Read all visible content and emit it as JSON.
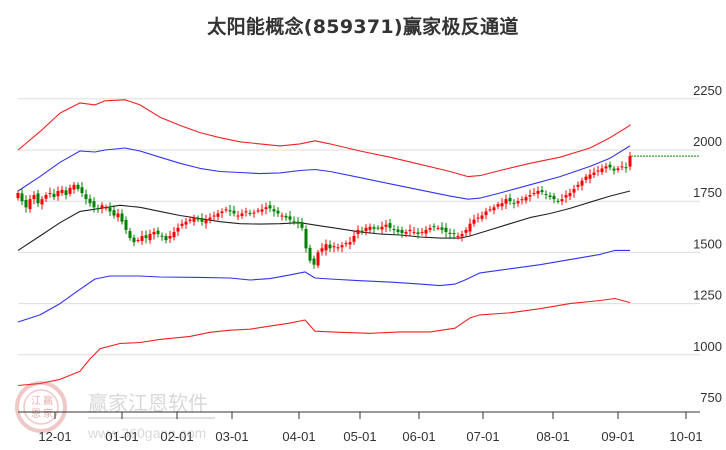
{
  "title": "太阳能概念(859371)赢家极反通道",
  "watermark": {
    "brand": "赢家江恩软件",
    "url": "www.360gann.com",
    "seal_chars": [
      "江",
      "赢",
      "恩",
      "家"
    ]
  },
  "colors": {
    "outer_band": "#ee2222",
    "inner_band": "#3333ee",
    "mid_line": "#222222",
    "up_candle": "#ff0000",
    "down_candle": "#008000",
    "last_price_line": "#008000",
    "grid": "#dddddd",
    "axis": "#333333"
  },
  "chart_data": {
    "type": "candlestick",
    "title": "太阳能概念(859371)赢家极反通道",
    "xlabel": "",
    "ylabel": "",
    "ylim": [
      750,
      2300
    ],
    "y_ticks": [
      750,
      1000,
      1250,
      1500,
      1750,
      2000,
      2250
    ],
    "x_ticks": [
      "12-01",
      "01-01",
      "02-01",
      "03-01",
      "04-01",
      "05-01",
      "06-01",
      "07-01",
      "08-01",
      "09-01",
      "10-01"
    ],
    "grid": true,
    "legend": null,
    "last_price": 1970,
    "series": [
      {
        "name": "upper_outer_band",
        "color": "#ee2222",
        "points": [
          [
            18,
            2000
          ],
          [
            40,
            2090
          ],
          [
            60,
            2180
          ],
          [
            80,
            2230
          ],
          [
            95,
            2220
          ],
          [
            105,
            2240
          ],
          [
            125,
            2245
          ],
          [
            140,
            2220
          ],
          [
            160,
            2160
          ],
          [
            180,
            2120
          ],
          [
            200,
            2085
          ],
          [
            220,
            2060
          ],
          [
            240,
            2040
          ],
          [
            260,
            2030
          ],
          [
            280,
            2020
          ],
          [
            300,
            2030
          ],
          [
            315,
            2045
          ],
          [
            330,
            2030
          ],
          [
            360,
            1995
          ],
          [
            390,
            1965
          ],
          [
            420,
            1930
          ],
          [
            450,
            1895
          ],
          [
            468,
            1870
          ],
          [
            480,
            1875
          ],
          [
            500,
            1900
          ],
          [
            530,
            1935
          ],
          [
            560,
            1965
          ],
          [
            590,
            2010
          ],
          [
            610,
            2060
          ],
          [
            630,
            2120
          ],
          [
            630,
            2125
          ]
        ]
      },
      {
        "name": "upper_inner_band",
        "color": "#3333ee",
        "points": [
          [
            18,
            1800
          ],
          [
            40,
            1870
          ],
          [
            60,
            1940
          ],
          [
            80,
            1995
          ],
          [
            95,
            1990
          ],
          [
            105,
            2000
          ],
          [
            125,
            2010
          ],
          [
            140,
            1995
          ],
          [
            160,
            1965
          ],
          [
            180,
            1935
          ],
          [
            200,
            1910
          ],
          [
            220,
            1895
          ],
          [
            240,
            1890
          ],
          [
            260,
            1885
          ],
          [
            280,
            1888
          ],
          [
            300,
            1900
          ],
          [
            315,
            1905
          ],
          [
            330,
            1895
          ],
          [
            360,
            1865
          ],
          [
            390,
            1835
          ],
          [
            420,
            1805
          ],
          [
            450,
            1775
          ],
          [
            468,
            1760
          ],
          [
            480,
            1765
          ],
          [
            500,
            1790
          ],
          [
            530,
            1830
          ],
          [
            560,
            1870
          ],
          [
            590,
            1920
          ],
          [
            610,
            1960
          ],
          [
            630,
            2020
          ]
        ]
      },
      {
        "name": "middle_line",
        "color": "#222222",
        "points": [
          [
            18,
            1510
          ],
          [
            40,
            1580
          ],
          [
            60,
            1645
          ],
          [
            80,
            1700
          ],
          [
            100,
            1715
          ],
          [
            120,
            1730
          ],
          [
            140,
            1720
          ],
          [
            160,
            1700
          ],
          [
            180,
            1680
          ],
          [
            200,
            1665
          ],
          [
            220,
            1650
          ],
          [
            240,
            1640
          ],
          [
            260,
            1638
          ],
          [
            280,
            1640
          ],
          [
            300,
            1645
          ],
          [
            320,
            1630
          ],
          [
            340,
            1615
          ],
          [
            360,
            1600
          ],
          [
            380,
            1590
          ],
          [
            400,
            1585
          ],
          [
            420,
            1575
          ],
          [
            440,
            1570
          ],
          [
            460,
            1570
          ],
          [
            470,
            1580
          ],
          [
            490,
            1610
          ],
          [
            510,
            1640
          ],
          [
            530,
            1670
          ],
          [
            550,
            1690
          ],
          [
            570,
            1715
          ],
          [
            590,
            1745
          ],
          [
            610,
            1775
          ],
          [
            630,
            1800
          ]
        ]
      },
      {
        "name": "lower_inner_band",
        "color": "#3333ee",
        "points": [
          [
            18,
            1160
          ],
          [
            40,
            1195
          ],
          [
            60,
            1250
          ],
          [
            80,
            1320
          ],
          [
            95,
            1370
          ],
          [
            110,
            1385
          ],
          [
            140,
            1385
          ],
          [
            160,
            1380
          ],
          [
            200,
            1378
          ],
          [
            230,
            1375
          ],
          [
            250,
            1365
          ],
          [
            270,
            1372
          ],
          [
            290,
            1390
          ],
          [
            305,
            1405
          ],
          [
            315,
            1375
          ],
          [
            330,
            1370
          ],
          [
            360,
            1362
          ],
          [
            390,
            1355
          ],
          [
            420,
            1345
          ],
          [
            440,
            1338
          ],
          [
            455,
            1345
          ],
          [
            465,
            1365
          ],
          [
            480,
            1400
          ],
          [
            510,
            1420
          ],
          [
            540,
            1440
          ],
          [
            570,
            1465
          ],
          [
            600,
            1490
          ],
          [
            615,
            1510
          ],
          [
            630,
            1510
          ]
        ]
      },
      {
        "name": "lower_outer_band",
        "color": "#ee2222",
        "points": [
          [
            18,
            850
          ],
          [
            40,
            860
          ],
          [
            60,
            880
          ],
          [
            80,
            920
          ],
          [
            90,
            980
          ],
          [
            100,
            1030
          ],
          [
            120,
            1055
          ],
          [
            140,
            1060
          ],
          [
            160,
            1075
          ],
          [
            190,
            1090
          ],
          [
            210,
            1110
          ],
          [
            230,
            1120
          ],
          [
            250,
            1125
          ],
          [
            270,
            1140
          ],
          [
            290,
            1155
          ],
          [
            305,
            1170
          ],
          [
            315,
            1115
          ],
          [
            340,
            1110
          ],
          [
            370,
            1105
          ],
          [
            400,
            1112
          ],
          [
            430,
            1112
          ],
          [
            455,
            1130
          ],
          [
            470,
            1180
          ],
          [
            480,
            1195
          ],
          [
            510,
            1205
          ],
          [
            540,
            1225
          ],
          [
            570,
            1250
          ],
          [
            600,
            1265
          ],
          [
            615,
            1275
          ],
          [
            630,
            1255
          ]
        ]
      }
    ],
    "candles_close_approx": [
      [
        18,
        1790
      ],
      [
        22,
        1750
      ],
      [
        26,
        1720
      ],
      [
        30,
        1760
      ],
      [
        34,
        1780
      ],
      [
        38,
        1740
      ],
      [
        42,
        1760
      ],
      [
        46,
        1780
      ],
      [
        50,
        1790
      ],
      [
        54,
        1770
      ],
      [
        58,
        1800
      ],
      [
        62,
        1805
      ],
      [
        66,
        1780
      ],
      [
        70,
        1815
      ],
      [
        74,
        1830
      ],
      [
        78,
        1810
      ],
      [
        82,
        1790
      ],
      [
        86,
        1760
      ],
      [
        90,
        1740
      ],
      [
        94,
        1720
      ],
      [
        98,
        1710
      ],
      [
        102,
        1730
      ],
      [
        106,
        1720
      ],
      [
        110,
        1700
      ],
      [
        114,
        1680
      ],
      [
        118,
        1690
      ],
      [
        122,
        1650
      ],
      [
        126,
        1610
      ],
      [
        130,
        1570
      ],
      [
        134,
        1550
      ],
      [
        138,
        1560
      ],
      [
        142,
        1580
      ],
      [
        146,
        1570
      ],
      [
        150,
        1590
      ],
      [
        154,
        1600
      ],
      [
        158,
        1590
      ],
      [
        162,
        1580
      ],
      [
        166,
        1560
      ],
      [
        170,
        1580
      ],
      [
        174,
        1600
      ],
      [
        178,
        1620
      ],
      [
        182,
        1640
      ],
      [
        186,
        1650
      ],
      [
        190,
        1660
      ],
      [
        194,
        1670
      ],
      [
        198,
        1660
      ],
      [
        202,
        1650
      ],
      [
        206,
        1660
      ],
      [
        210,
        1670
      ],
      [
        214,
        1680
      ],
      [
        218,
        1690
      ],
      [
        222,
        1700
      ],
      [
        226,
        1710
      ],
      [
        230,
        1700
      ],
      [
        234,
        1690
      ],
      [
        238,
        1680
      ],
      [
        242,
        1690
      ],
      [
        246,
        1700
      ],
      [
        250,
        1690
      ],
      [
        254,
        1695
      ],
      [
        258,
        1705
      ],
      [
        262,
        1710
      ],
      [
        266,
        1720
      ],
      [
        270,
        1715
      ],
      [
        274,
        1700
      ],
      [
        278,
        1690
      ],
      [
        282,
        1680
      ],
      [
        286,
        1670
      ],
      [
        290,
        1660
      ],
      [
        294,
        1650
      ],
      [
        298,
        1640
      ],
      [
        302,
        1620
      ],
      [
        306,
        1520
      ],
      [
        310,
        1460
      ],
      [
        314,
        1440
      ],
      [
        318,
        1500
      ],
      [
        322,
        1520
      ],
      [
        326,
        1540
      ],
      [
        330,
        1520
      ],
      [
        334,
        1530
      ],
      [
        338,
        1525
      ],
      [
        342,
        1535
      ],
      [
        346,
        1545
      ],
      [
        350,
        1550
      ],
      [
        354,
        1580
      ],
      [
        358,
        1610
      ],
      [
        362,
        1600
      ],
      [
        366,
        1620
      ],
      [
        370,
        1625
      ],
      [
        374,
        1615
      ],
      [
        378,
        1620
      ],
      [
        382,
        1625
      ],
      [
        386,
        1635
      ],
      [
        390,
        1620
      ],
      [
        394,
        1610
      ],
      [
        398,
        1600
      ],
      [
        402,
        1595
      ],
      [
        406,
        1600
      ],
      [
        410,
        1610
      ],
      [
        414,
        1600
      ],
      [
        418,
        1590
      ],
      [
        422,
        1600
      ],
      [
        426,
        1610
      ],
      [
        430,
        1620
      ],
      [
        434,
        1625
      ],
      [
        438,
        1620
      ],
      [
        442,
        1610
      ],
      [
        446,
        1600
      ],
      [
        450,
        1590
      ],
      [
        454,
        1590
      ],
      [
        458,
        1580
      ],
      [
        462,
        1590
      ],
      [
        466,
        1610
      ],
      [
        470,
        1640
      ],
      [
        474,
        1660
      ],
      [
        478,
        1670
      ],
      [
        482,
        1680
      ],
      [
        486,
        1700
      ],
      [
        490,
        1710
      ],
      [
        494,
        1720
      ],
      [
        498,
        1735
      ],
      [
        502,
        1740
      ],
      [
        506,
        1760
      ],
      [
        510,
        1750
      ],
      [
        514,
        1740
      ],
      [
        518,
        1750
      ],
      [
        522,
        1760
      ],
      [
        526,
        1770
      ],
      [
        530,
        1780
      ],
      [
        534,
        1790
      ],
      [
        538,
        1800
      ],
      [
        542,
        1795
      ],
      [
        546,
        1780
      ],
      [
        550,
        1770
      ],
      [
        554,
        1760
      ],
      [
        558,
        1750
      ],
      [
        562,
        1760
      ],
      [
        566,
        1780
      ],
      [
        570,
        1790
      ],
      [
        574,
        1810
      ],
      [
        578,
        1830
      ],
      [
        582,
        1850
      ],
      [
        586,
        1870
      ],
      [
        590,
        1880
      ],
      [
        594,
        1890
      ],
      [
        598,
        1900
      ],
      [
        602,
        1910
      ],
      [
        606,
        1920
      ],
      [
        610,
        1915
      ],
      [
        614,
        1900
      ],
      [
        618,
        1910
      ],
      [
        622,
        1920
      ],
      [
        626,
        1915
      ],
      [
        630,
        1970
      ]
    ]
  }
}
